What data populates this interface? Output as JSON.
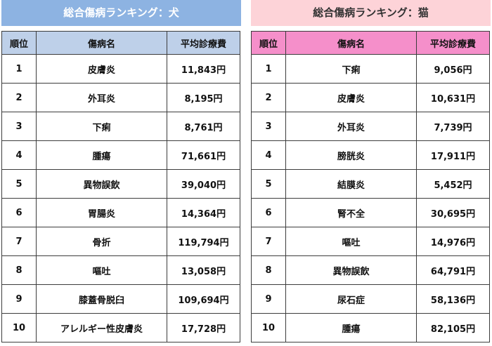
{
  "dog": {
    "title": "総合傷病ランキング：犬",
    "headers": [
      "順位",
      "傷病名",
      "平均診療費"
    ],
    "rows": [
      {
        "rank": "1",
        "name": "皮膚炎",
        "cost": "11,843円"
      },
      {
        "rank": "2",
        "name": "外耳炎",
        "cost": "8,195円"
      },
      {
        "rank": "3",
        "name": "下痢",
        "cost": "8,761円"
      },
      {
        "rank": "4",
        "name": "腫瘍",
        "cost": "71,661円"
      },
      {
        "rank": "5",
        "name": "異物誤飲",
        "cost": "39,040円"
      },
      {
        "rank": "6",
        "name": "胃腸炎",
        "cost": "14,364円"
      },
      {
        "rank": "7",
        "name": "骨折",
        "cost": "119,794円"
      },
      {
        "rank": "8",
        "name": "嘔吐",
        "cost": "13,058円"
      },
      {
        "rank": "9",
        "name": "膝蓋骨脱臼",
        "cost": "109,694円"
      },
      {
        "rank": "10",
        "name": "アレルギー性皮膚炎",
        "cost": "17,728円"
      }
    ]
  },
  "cat": {
    "title": "総合傷病ランキング：猫",
    "headers": [
      "順位",
      "傷病名",
      "平均診療費"
    ],
    "rows": [
      {
        "rank": "1",
        "name": "下痢",
        "cost": "9,056円"
      },
      {
        "rank": "2",
        "name": "皮膚炎",
        "cost": "10,631円"
      },
      {
        "rank": "3",
        "name": "外耳炎",
        "cost": "7,739円"
      },
      {
        "rank": "4",
        "name": "膀胱炎",
        "cost": "17,911円"
      },
      {
        "rank": "5",
        "name": "結膜炎",
        "cost": "5,452円"
      },
      {
        "rank": "6",
        "name": "腎不全",
        "cost": "30,695円"
      },
      {
        "rank": "7",
        "name": "嘔吐",
        "cost": "14,976円"
      },
      {
        "rank": "8",
        "name": "異物誤飲",
        "cost": "64,791円"
      },
      {
        "rank": "9",
        "name": "尿石症",
        "cost": "58,136円"
      },
      {
        "rank": "10",
        "name": "腫瘍",
        "cost": "82,105円"
      }
    ]
  }
}
